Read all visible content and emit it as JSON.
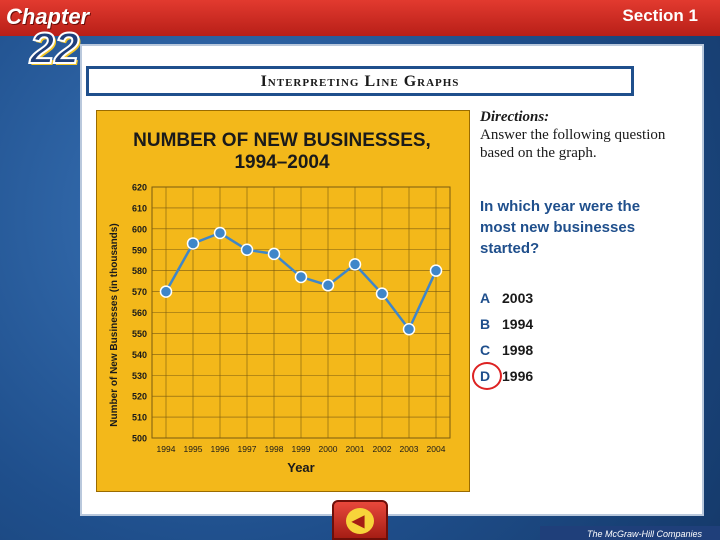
{
  "header": {
    "chapter_label": "Chapter",
    "chapter_number": "22",
    "section_label": "Section 1"
  },
  "slide": {
    "title": "Interpreting Line Graphs"
  },
  "directions": {
    "title": "Directions:",
    "text": "Answer the following question based on the graph."
  },
  "question": "In which year were the most new businesses started?",
  "answers": [
    {
      "letter": "A",
      "text": "2003",
      "selected": false
    },
    {
      "letter": "B",
      "text": "1994",
      "selected": false
    },
    {
      "letter": "C",
      "text": "1998",
      "selected": false
    },
    {
      "letter": "D",
      "text": "1996",
      "selected": true
    }
  ],
  "footer": {
    "publisher": "The McGraw-Hill Companies"
  },
  "colors": {
    "chart_background": "#f3b81a",
    "line": "#3f86c9",
    "marker": "#3f86c9",
    "grid": "#7a5a10",
    "title_text": "#1a1a1a",
    "answer_circle": "#dd2222"
  },
  "chart_data": {
    "type": "line",
    "title": "NUMBER OF NEW BUSINESSES,",
    "subtitle": "1994–2004",
    "xlabel": "Year",
    "ylabel": "Number of New Businesses (in thousands)",
    "x": [
      "1994",
      "1995",
      "1996",
      "1997",
      "1998",
      "1999",
      "2000",
      "2001",
      "2002",
      "2003",
      "2004"
    ],
    "yticks": [
      500,
      510,
      520,
      530,
      540,
      550,
      560,
      570,
      580,
      590,
      600,
      610,
      620
    ],
    "ylim": [
      500,
      620
    ],
    "grid": true,
    "series": [
      {
        "values": [
          570,
          593,
          598,
          590,
          588,
          577,
          573,
          583,
          569,
          552,
          580
        ]
      }
    ]
  }
}
